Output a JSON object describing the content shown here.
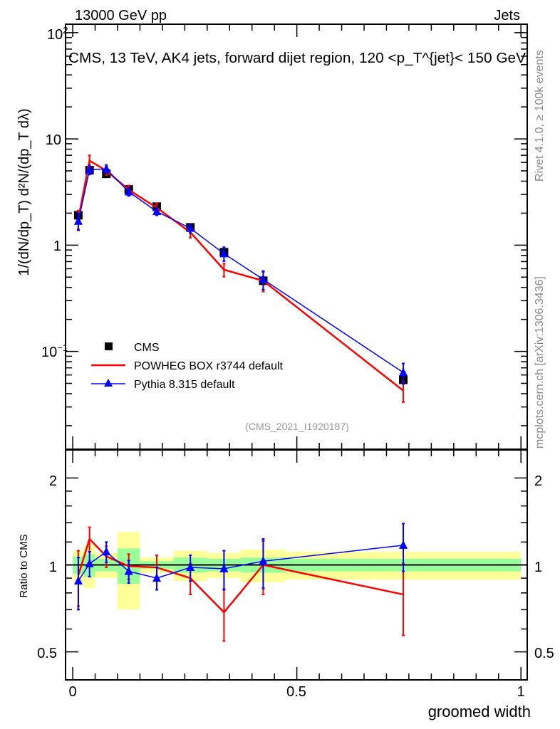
{
  "header": {
    "left": "13000 GeV pp",
    "right": "Jets"
  },
  "side_labels": {
    "rivet": "Rivet 4.1.0, ≥ 100k events",
    "mcplots": "mcplots.cern.ch [arXiv:1306.3436]"
  },
  "analysis_id": "(CMS_2021_I1920187)",
  "colors": {
    "cms": "#000000",
    "powheg": "#ff0000",
    "pythia": "#0000ff",
    "band_inner": "#99ff99",
    "band_outer": "#ffff99"
  },
  "chart_data": [
    {
      "type": "line",
      "title": "CMS, 13 TeV, AK4 jets, forward dijet region, 120 <p_T^{jet}< 150 GeV",
      "ylabel": "1/(dN/dp_T) d²N/(dp_T dλ)",
      "yscale": "log",
      "ylim": [
        0.012,
        120
      ],
      "xlim": [
        -0.016,
        1.014
      ],
      "yticks": [
        {
          "v": 100,
          "label": "10",
          "sup": "2"
        },
        {
          "v": 10,
          "label": "10",
          "sup": ""
        },
        {
          "v": 1,
          "label": "1",
          "sup": ""
        },
        {
          "v": 0.1,
          "label": "10",
          "sup": "−1"
        }
      ],
      "legend_position": "lower-left",
      "x": [
        0.0125,
        0.0375,
        0.075,
        0.125,
        0.1875,
        0.2625,
        0.3375,
        0.425,
        0.7375
      ],
      "bin_edges": [
        0,
        0.025,
        0.05,
        0.1,
        0.15,
        0.225,
        0.3,
        0.375,
        0.475,
        1.0
      ],
      "series": [
        {
          "name": "CMS",
          "marker": "square",
          "values": [
            1.91,
            5.07,
            4.69,
            3.34,
            2.3,
            1.47,
            0.857,
            0.462,
            0.054
          ]
        },
        {
          "name": "POWHEG BOX r3744 default",
          "marker": "none",
          "values": [
            1.76,
            6.24,
            5.02,
            3.31,
            2.25,
            1.32,
            0.587,
            0.462,
            0.0427
          ],
          "rel_err": [
            0.2,
            0.12,
            0.09,
            0.1,
            0.1,
            0.11,
            0.14,
            0.21,
            0.22
          ]
        },
        {
          "name": "Pythia 8.315 default",
          "marker": "triangle",
          "values": [
            1.68,
            5.12,
            5.21,
            3.17,
            2.07,
            1.44,
            0.831,
            0.476,
            0.0632
          ],
          "rel_err": [
            0.18,
            0.1,
            0.09,
            0.085,
            0.08,
            0.1,
            0.15,
            0.2,
            0.22
          ]
        }
      ]
    },
    {
      "type": "line",
      "ylabel": "Ratio to CMS",
      "xlabel": "groomed width",
      "yscale": "log",
      "ylim": [
        0.4,
        2.5
      ],
      "xlim": [
        -0.016,
        1.014
      ],
      "yticks": [
        {
          "v": 2,
          "label": "2"
        },
        {
          "v": 1,
          "label": "1"
        },
        {
          "v": 0.5,
          "label": "0.5"
        }
      ],
      "xticks": [
        {
          "v": 0,
          "label": "0"
        },
        {
          "v": 0.5,
          "label": "0.5"
        },
        {
          "v": 1,
          "label": "1"
        }
      ],
      "band_inner_halfwidth": [
        0.07,
        0.09,
        0.05,
        0.14,
        0.03,
        0.06,
        0.05,
        0.06,
        0.05
      ],
      "band_outer_halfwidth": [
        0.12,
        0.17,
        0.1,
        0.3,
        0.06,
        0.12,
        0.1,
        0.13,
        0.11
      ],
      "series": [
        {
          "name": "POWHEG BOX r3744 default",
          "values": [
            0.92,
            1.23,
            1.07,
            0.99,
            0.98,
            0.9,
            0.685,
            1.0,
            0.79
          ],
          "err": [
            0.2,
            0.12,
            0.09,
            0.1,
            0.1,
            0.11,
            0.14,
            0.21,
            0.22
          ]
        },
        {
          "name": "Pythia 8.315 default",
          "values": [
            0.88,
            1.01,
            1.11,
            0.95,
            0.9,
            0.98,
            0.97,
            1.03,
            1.17
          ],
          "err": [
            0.18,
            0.1,
            0.09,
            0.085,
            0.08,
            0.1,
            0.15,
            0.2,
            0.22
          ]
        }
      ]
    }
  ]
}
